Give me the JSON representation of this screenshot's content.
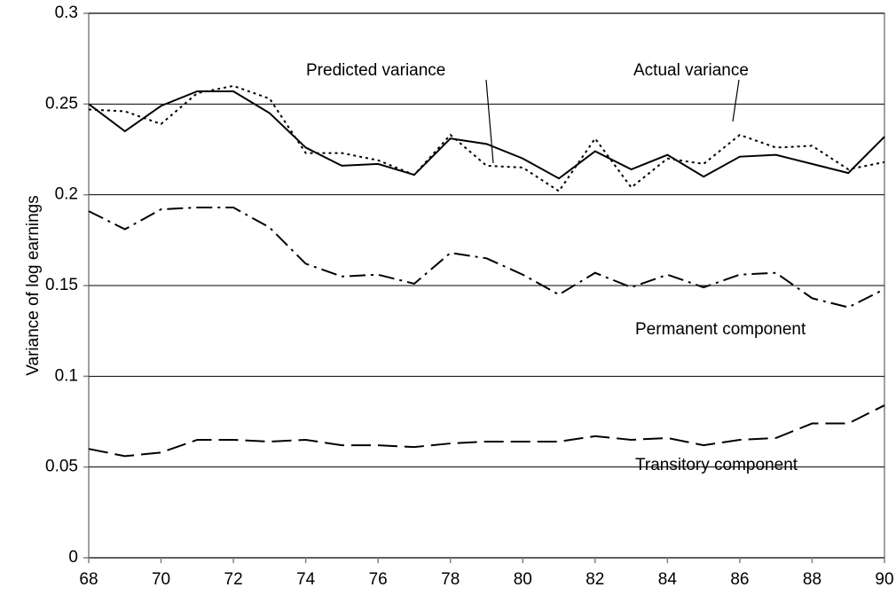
{
  "chart_data": {
    "type": "line",
    "y_label": "Variance of log earnings",
    "x": [
      68,
      69,
      70,
      71,
      72,
      73,
      74,
      75,
      76,
      77,
      78,
      79,
      80,
      81,
      82,
      83,
      84,
      85,
      86,
      87,
      88,
      89,
      90
    ],
    "xlim": [
      68,
      90
    ],
    "xticks": [
      68,
      70,
      72,
      74,
      76,
      78,
      80,
      82,
      84,
      86,
      88,
      90
    ],
    "ylim": [
      0,
      0.3
    ],
    "yticks": [
      0,
      0.05,
      0.1,
      0.15,
      0.2,
      0.25,
      0.3
    ],
    "grid": true,
    "annotations": [
      "Predicted variance",
      "Actual variance",
      "Permanent component",
      "Transitory component"
    ],
    "series": [
      {
        "name": "Actual variance",
        "color": "#000000",
        "style": "dotted",
        "values": [
          0.247,
          0.246,
          0.239,
          0.256,
          0.26,
          0.253,
          0.223,
          0.223,
          0.219,
          0.211,
          0.233,
          0.216,
          0.215,
          0.202,
          0.231,
          0.204,
          0.22,
          0.217,
          0.233,
          0.226,
          0.227,
          0.214,
          0.218
        ]
      },
      {
        "name": "Predicted variance",
        "color": "#000000",
        "style": "solid",
        "values": [
          0.25,
          0.235,
          0.249,
          0.257,
          0.257,
          0.245,
          0.226,
          0.216,
          0.217,
          0.211,
          0.231,
          0.228,
          0.22,
          0.209,
          0.224,
          0.214,
          0.222,
          0.21,
          0.221,
          0.222,
          0.217,
          0.212,
          0.232
        ]
      },
      {
        "name": "Permanent component",
        "color": "#000000",
        "style": "dashdot",
        "values": [
          0.191,
          0.181,
          0.192,
          0.193,
          0.193,
          0.182,
          0.162,
          0.155,
          0.156,
          0.151,
          0.168,
          0.165,
          0.156,
          0.145,
          0.157,
          0.149,
          0.156,
          0.149,
          0.156,
          0.157,
          0.143,
          0.138,
          0.148
        ]
      },
      {
        "name": "Transitory component",
        "color": "#000000",
        "style": "dashed",
        "values": [
          0.06,
          0.056,
          0.058,
          0.065,
          0.065,
          0.064,
          0.065,
          0.062,
          0.062,
          0.061,
          0.063,
          0.064,
          0.064,
          0.064,
          0.067,
          0.065,
          0.066,
          0.062,
          0.065,
          0.066,
          0.074,
          0.074,
          0.084
        ]
      }
    ]
  }
}
